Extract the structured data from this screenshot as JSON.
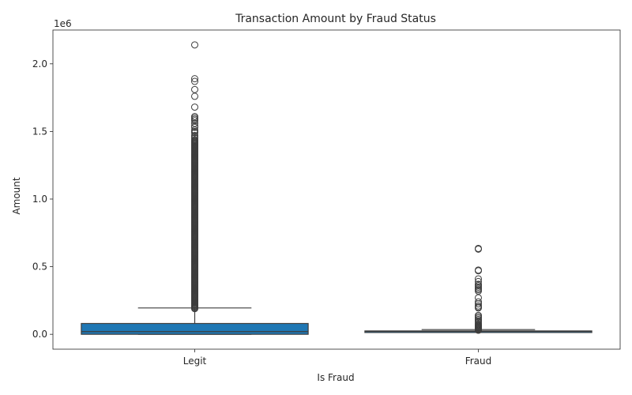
{
  "chart_data": {
    "type": "box",
    "title": "Transaction Amount by Fraud Status",
    "xlabel": "Is Fraud",
    "ylabel": "Amount",
    "y_offset_label": "1e6",
    "ylim": [
      -0.11,
      2.25
    ],
    "yticks": [
      0.0,
      0.5,
      1.0,
      1.5,
      2.0
    ],
    "ytick_labels": [
      "0.0",
      "0.5",
      "1.0",
      "1.5",
      "2.0"
    ],
    "categories": [
      "Legit",
      "Fraud"
    ],
    "box_color": "#1f77b4",
    "edge_color": "#3d3d3d",
    "boxes": [
      {
        "category": "Legit",
        "q1": 0.0,
        "median": 0.02,
        "q3": 0.08,
        "whisker_low": 0.0,
        "whisker_high": 0.195,
        "outliers": [
          2.14,
          1.89,
          1.87,
          1.81,
          1.76,
          1.68,
          1.61,
          1.6,
          1.59,
          1.58,
          1.56,
          1.54,
          1.53,
          1.51,
          1.5,
          1.49,
          1.47,
          1.46,
          1.45
        ]
      },
      {
        "category": "Fraud",
        "q1": 0.02,
        "median": 0.022,
        "q3": 0.025,
        "whisker_low": 0.02,
        "whisker_high": 0.035,
        "outliers": [
          0.63,
          0.635,
          0.47,
          0.475,
          0.41,
          0.39,
          0.37,
          0.36,
          0.35,
          0.34,
          0.33,
          0.32,
          0.27,
          0.24,
          0.225,
          0.21,
          0.2,
          0.195,
          0.14,
          0.13,
          0.12,
          0.11,
          0.1,
          0.09,
          0.08,
          0.07,
          0.065,
          0.06,
          0.055,
          0.05,
          0.045,
          0.04,
          0.035,
          0.03
        ]
      }
    ],
    "dense_outlier_range": {
      "category": "Legit",
      "from": 0.19,
      "to": 1.44
    }
  }
}
